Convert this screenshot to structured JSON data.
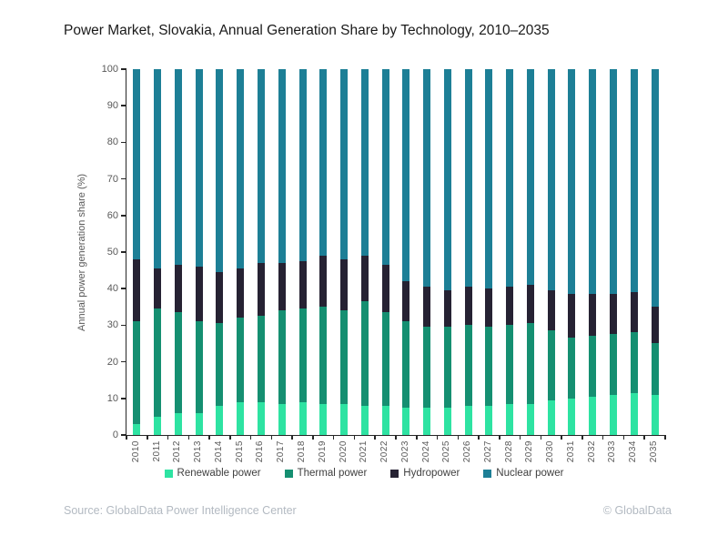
{
  "title": "Power Market, Slovakia, Annual Generation Share by Technology, 2010–2035",
  "footer": {
    "source": "Source: GlobalData Power Intelligence Center",
    "copyright": "© GlobalData"
  },
  "colors": {
    "renewable": "#2ee3a2",
    "thermal": "#158f71",
    "hydro": "#262233",
    "nuclear": "#1d7f96",
    "axis": "#262626",
    "tick_text": "#595959",
    "footer_text": "#b3bac2"
  },
  "chart_data": {
    "type": "bar",
    "stacked": true,
    "title": "Power Market, Slovakia, Annual Generation Share by Technology, 2010–2035",
    "xlabel": "",
    "ylabel": "Annual power generation share (%)",
    "ylim": [
      0,
      100
    ],
    "yticks": [
      0,
      10,
      20,
      30,
      40,
      50,
      60,
      70,
      80,
      90,
      100
    ],
    "grid": false,
    "legend_position": "bottom",
    "categories": [
      "2010",
      "2011",
      "2012",
      "2013",
      "2014",
      "2015",
      "2016",
      "2017",
      "2018",
      "2019",
      "2020",
      "2021",
      "2022",
      "2023",
      "2024",
      "2025",
      "2026",
      "2027",
      "2028",
      "2029",
      "2030",
      "2031",
      "2032",
      "2033",
      "2034",
      "2035"
    ],
    "series": [
      {
        "name": "Renewable power",
        "color": "#2ee3a2",
        "values": [
          3,
          5,
          6,
          6,
          8,
          9,
          9,
          8.5,
          9,
          8.5,
          8.5,
          8,
          8,
          7.5,
          7.5,
          7.5,
          8,
          8,
          8.5,
          8.5,
          9.5,
          10,
          10.5,
          11,
          11.5,
          11
        ]
      },
      {
        "name": "Thermal power",
        "color": "#158f71",
        "values": [
          28,
          29.5,
          27.5,
          25,
          22.5,
          23,
          23.5,
          25.5,
          25.5,
          26.5,
          25.5,
          28.5,
          25.5,
          23.5,
          22,
          22,
          22,
          21.5,
          21.5,
          22,
          19,
          16.5,
          16.5,
          16.5,
          16.5,
          14
        ]
      },
      {
        "name": "Hydropower",
        "color": "#262233",
        "values": [
          17,
          11,
          13,
          15,
          14,
          13.5,
          14.5,
          13,
          13,
          14,
          14,
          12.5,
          13,
          11,
          11,
          10,
          10.5,
          10.5,
          10.5,
          10.5,
          11,
          12,
          11.5,
          11,
          11,
          10
        ]
      },
      {
        "name": "Nuclear power",
        "color": "#1d7f96",
        "values": [
          52,
          54.5,
          53.5,
          54,
          55.5,
          54.5,
          53,
          53,
          52.5,
          51,
          52,
          51,
          53.5,
          58,
          59.5,
          60.5,
          59.5,
          60,
          59.5,
          59,
          60.5,
          61.5,
          61.5,
          61.5,
          61,
          65
        ]
      }
    ]
  }
}
